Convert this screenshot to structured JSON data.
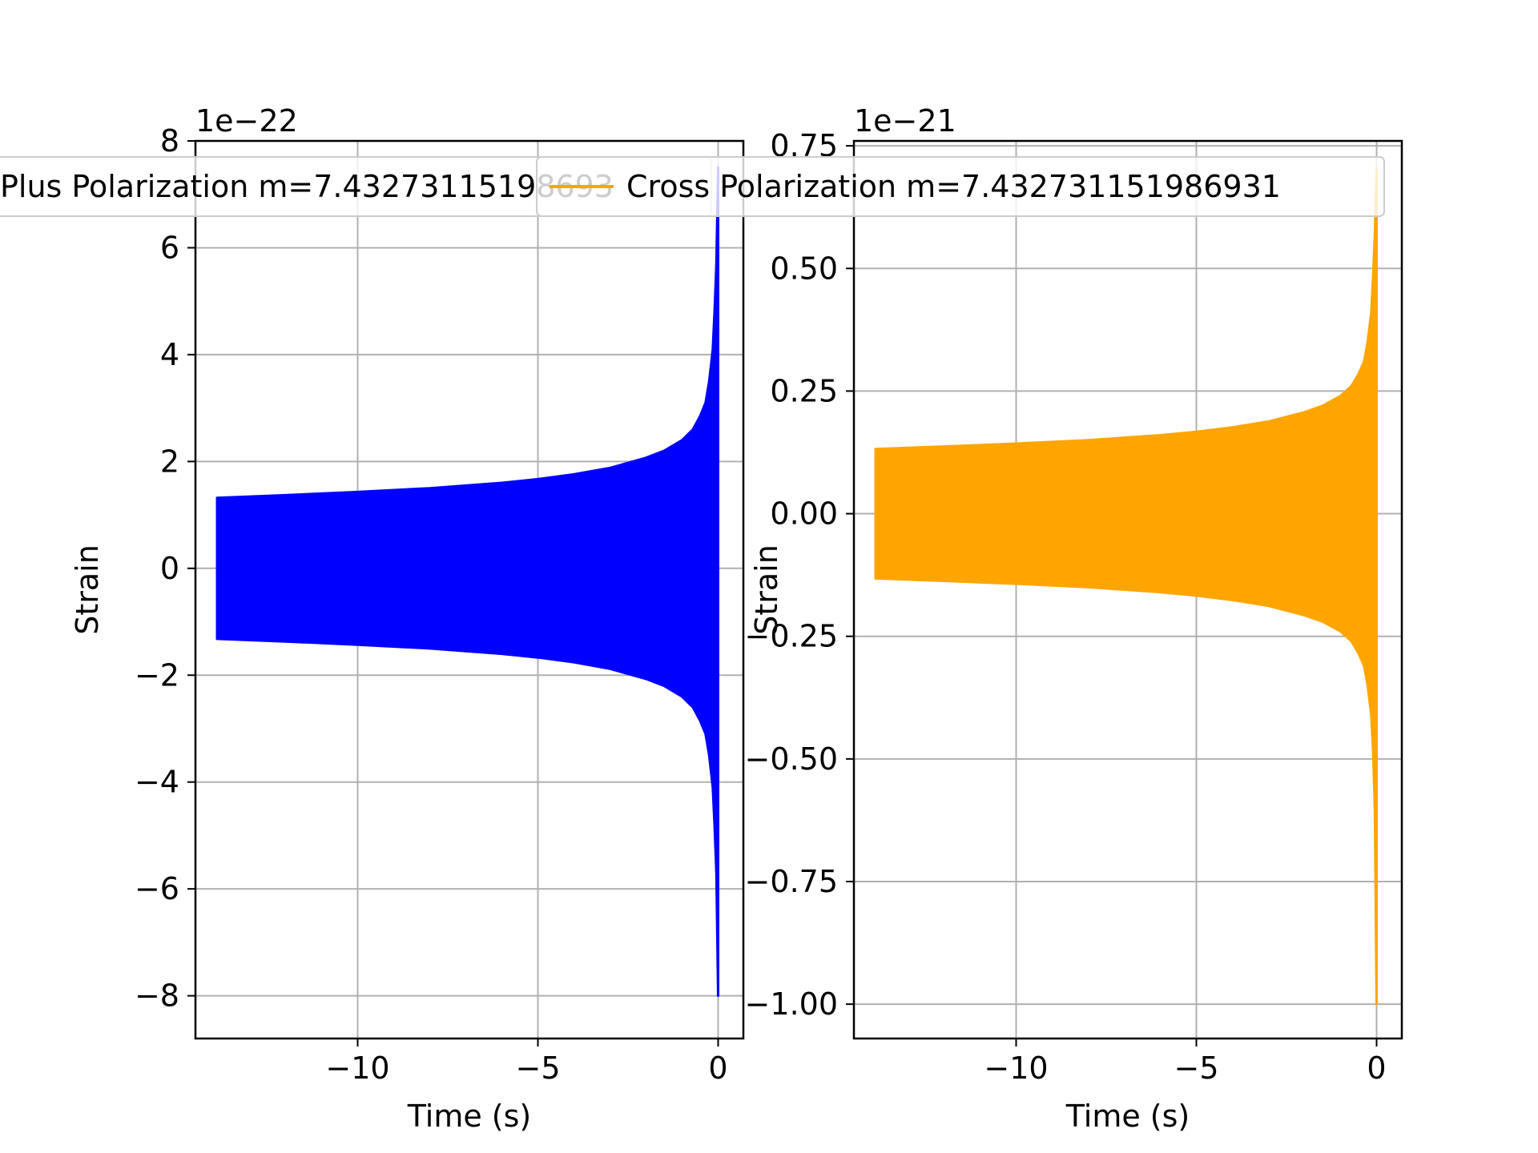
{
  "chart_data": [
    {
      "type": "line",
      "xlabel": "Time (s)",
      "ylabel": "Strain",
      "offset_text": "1e−22",
      "legend": {
        "label": "Plus Polarization m=7.43273115198693",
        "placement": "upper-left, overflowing"
      },
      "grid": true,
      "xlim": [
        -14.5,
        0.7
      ],
      "ylim": [
        -8.8,
        8.0
      ],
      "xticks": [
        -10,
        -5,
        0
      ],
      "xtick_labels": [
        "−10",
        "−5",
        "0"
      ],
      "yticks": [
        -8,
        -6,
        -4,
        -2,
        0,
        2,
        4,
        6,
        8
      ],
      "ytick_labels": [
        "−8",
        "−6",
        "−4",
        "−2",
        "0",
        "2",
        "4",
        "6",
        "8"
      ],
      "series": [
        {
          "color": "#0000ff",
          "envelope": {
            "t": [
              -13.9,
              -12,
              -10,
              -8,
              -6,
              -5,
              -4,
              -3,
              -2,
              -1.5,
              -1,
              -0.7,
              -0.5,
              -0.35,
              -0.25,
              -0.15,
              -0.1,
              -0.05,
              0
            ],
            "upper": [
              1.32,
              1.37,
              1.43,
              1.5,
              1.6,
              1.67,
              1.76,
              1.88,
              2.07,
              2.2,
              2.4,
              2.6,
              2.85,
              3.1,
              3.5,
              4.1,
              4.8,
              5.7,
              7.5
            ],
            "lower": [
              -1.32,
              -1.37,
              -1.43,
              -1.5,
              -1.6,
              -1.67,
              -1.76,
              -1.88,
              -2.07,
              -2.2,
              -2.4,
              -2.6,
              -2.85,
              -3.1,
              -3.5,
              -4.1,
              -4.8,
              -5.7,
              -8.0
            ]
          }
        }
      ]
    },
    {
      "type": "line",
      "xlabel": "Time (s)",
      "ylabel": "Strain",
      "offset_text": "1e−21",
      "legend": {
        "label": "Cross Polarization m=7.432731151986931",
        "placement": "upper-left, overflowing"
      },
      "grid": true,
      "xlim": [
        -14.5,
        0.7
      ],
      "ylim": [
        -1.07,
        0.76
      ],
      "xticks": [
        -10,
        -5,
        0
      ],
      "xtick_labels": [
        "−10",
        "−5",
        "0"
      ],
      "yticks": [
        -1.0,
        -0.75,
        -0.5,
        -0.25,
        0.0,
        0.25,
        0.5,
        0.75
      ],
      "ytick_labels": [
        "−1.00",
        "−0.75",
        "−0.50",
        "−0.25",
        "0.00",
        "0.25",
        "0.50",
        "0.75"
      ],
      "series": [
        {
          "color": "#ffa500",
          "envelope": {
            "t": [
              -13.9,
              -12,
              -10,
              -8,
              -6,
              -5,
              -4,
              -3,
              -2,
              -1.5,
              -1,
              -0.7,
              -0.5,
              -0.35,
              -0.25,
              -0.15,
              -0.1,
              -0.05,
              0
            ],
            "upper": [
              0.132,
              0.137,
              0.143,
              0.15,
              0.16,
              0.167,
              0.176,
              0.188,
              0.207,
              0.22,
              0.24,
              0.26,
              0.285,
              0.31,
              0.35,
              0.41,
              0.48,
              0.57,
              0.7
            ],
            "lower": [
              -0.132,
              -0.137,
              -0.143,
              -0.15,
              -0.16,
              -0.167,
              -0.176,
              -0.188,
              -0.207,
              -0.22,
              -0.24,
              -0.26,
              -0.285,
              -0.31,
              -0.35,
              -0.41,
              -0.48,
              -0.6,
              -1.0
            ]
          }
        }
      ]
    }
  ]
}
